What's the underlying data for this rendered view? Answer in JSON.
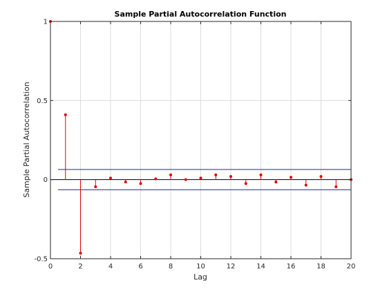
{
  "chart_data": {
    "type": "stem",
    "title": "Sample Partial Autocorrelation Function",
    "xlabel": "Lag",
    "ylabel": "Sample Partial Autocorrelation",
    "xlim": [
      0,
      20
    ],
    "ylim": [
      -0.5,
      1
    ],
    "xticks": [
      "0",
      "2",
      "4",
      "6",
      "8",
      "10",
      "12",
      "14",
      "16",
      "18",
      "20"
    ],
    "yticks": [
      "-0.5",
      "0",
      "0.5",
      "1"
    ],
    "grid": true,
    "lags": [
      0,
      1,
      2,
      3,
      4,
      5,
      6,
      7,
      8,
      9,
      10,
      11,
      12,
      13,
      14,
      15,
      16,
      17,
      18,
      19,
      20
    ],
    "values": [
      1.0,
      0.41,
      -0.465,
      -0.045,
      0.01,
      -0.015,
      -0.025,
      0.005,
      0.03,
      0.0,
      0.01,
      0.03,
      0.02,
      -0.025,
      0.03,
      -0.015,
      0.015,
      -0.035,
      0.02,
      -0.045,
      0.0
    ],
    "confidence_bounds": [
      0.064,
      -0.064
    ],
    "stem_color": "#e00000",
    "bound_color": "#1f1fb4"
  }
}
